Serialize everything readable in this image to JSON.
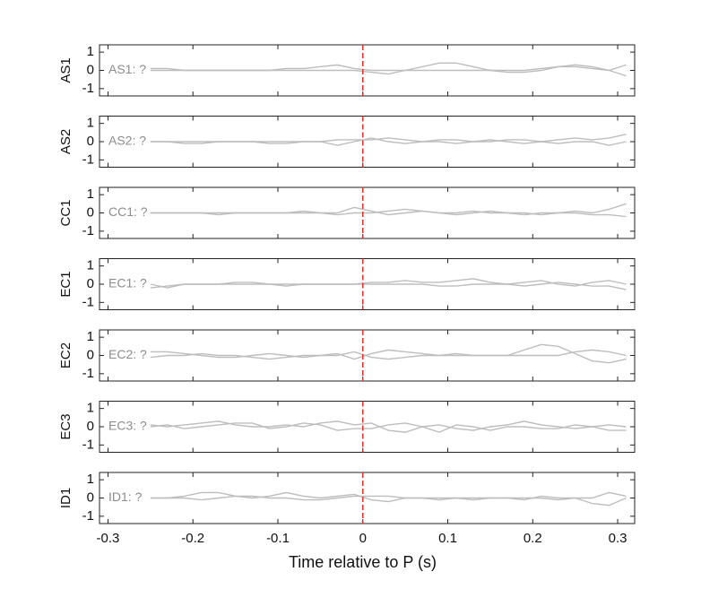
{
  "chart_data": [
    {
      "type": "line",
      "ylabel": "AS1",
      "annotation": "AS1: ?",
      "x": [
        -0.25,
        -0.23,
        -0.21,
        -0.19,
        -0.17,
        -0.15,
        -0.13,
        -0.11,
        -0.09,
        -0.07,
        -0.05,
        -0.03,
        -0.01,
        0.01,
        0.03,
        0.05,
        0.07,
        0.09,
        0.11,
        0.13,
        0.15,
        0.17,
        0.19,
        0.21,
        0.23,
        0.25,
        0.27,
        0.29,
        0.31
      ],
      "series": [
        {
          "color": "#bdbdbd",
          "values": [
            0,
            0,
            0,
            0,
            0,
            0,
            0,
            0,
            0,
            0,
            0,
            0,
            0,
            -0.1,
            -0.2,
            0,
            0.2,
            0.4,
            0.4,
            0.2,
            0,
            -0.1,
            -0.1,
            0,
            0.2,
            0.3,
            0.2,
            0,
            -0.3
          ]
        },
        {
          "color": "#bdbdbd",
          "values": [
            0.1,
            0.1,
            0,
            0,
            0,
            0,
            0,
            0,
            0.1,
            0.1,
            0.2,
            0.3,
            0.1,
            0,
            0,
            0,
            0,
            0,
            0,
            0,
            0,
            0,
            0,
            0.1,
            0.2,
            0.2,
            0.1,
            0,
            0.3
          ]
        }
      ],
      "xlim": [
        -0.31,
        0.32
      ],
      "ylim": [
        -1.4,
        1.4
      ],
      "yticks": [
        -1,
        0,
        1
      ],
      "vline": 0,
      "vline_color": "#e8312b"
    },
    {
      "type": "line",
      "ylabel": "AS2",
      "annotation": "AS2: ?",
      "x": [
        -0.25,
        -0.23,
        -0.21,
        -0.19,
        -0.17,
        -0.15,
        -0.13,
        -0.11,
        -0.09,
        -0.07,
        -0.05,
        -0.03,
        -0.01,
        0.01,
        0.03,
        0.05,
        0.07,
        0.09,
        0.11,
        0.13,
        0.15,
        0.17,
        0.19,
        0.21,
        0.23,
        0.25,
        0.27,
        0.29,
        0.31
      ],
      "series": [
        {
          "color": "#bdbdbd",
          "values": [
            0,
            0,
            0,
            0,
            0,
            0,
            0,
            0,
            0,
            0,
            0,
            0.1,
            0.1,
            0.1,
            0.2,
            0.1,
            0,
            0.1,
            0.1,
            0,
            0,
            0.1,
            0.1,
            0,
            0.1,
            0.2,
            0.1,
            0.2,
            0.4
          ]
        },
        {
          "color": "#bdbdbd",
          "values": [
            0,
            0,
            -0.1,
            -0.1,
            0,
            0,
            0,
            -0.1,
            -0.1,
            0,
            0,
            -0.2,
            0,
            0.2,
            0,
            -0.1,
            0,
            0,
            -0.1,
            0,
            0.1,
            0,
            -0.1,
            0,
            -0.1,
            0,
            0,
            -0.2,
            0
          ]
        }
      ],
      "xlim": [
        -0.31,
        0.32
      ],
      "ylim": [
        -1.4,
        1.4
      ],
      "yticks": [
        -1,
        0,
        1
      ],
      "vline": 0,
      "vline_color": "#e8312b"
    },
    {
      "type": "line",
      "ylabel": "CC1",
      "annotation": "CC1: ?",
      "x": [
        -0.25,
        -0.23,
        -0.21,
        -0.19,
        -0.17,
        -0.15,
        -0.13,
        -0.11,
        -0.09,
        -0.07,
        -0.05,
        -0.03,
        -0.01,
        0.01,
        0.03,
        0.05,
        0.07,
        0.09,
        0.11,
        0.13,
        0.15,
        0.17,
        0.19,
        0.21,
        0.23,
        0.25,
        0.27,
        0.29,
        0.31
      ],
      "series": [
        {
          "color": "#bdbdbd",
          "values": [
            0,
            0,
            0,
            0,
            0,
            0,
            0,
            0,
            0,
            0,
            0,
            0,
            0.3,
            0.1,
            -0.1,
            0,
            0.1,
            0,
            -0.1,
            0,
            0.1,
            0,
            -0.1,
            0,
            0,
            0.1,
            0,
            0.2,
            0.5
          ]
        },
        {
          "color": "#bdbdbd",
          "values": [
            0,
            0,
            0,
            0,
            -0.1,
            0,
            0,
            0,
            0,
            0.1,
            0,
            -0.1,
            0,
            0,
            0.1,
            0.2,
            0.1,
            0,
            0,
            0.1,
            0,
            0,
            0,
            -0.1,
            0,
            0,
            -0.1,
            -0.1,
            -0.2
          ]
        }
      ],
      "xlim": [
        -0.31,
        0.32
      ],
      "ylim": [
        -1.4,
        1.4
      ],
      "yticks": [
        -1,
        0,
        1
      ],
      "vline": 0,
      "vline_color": "#e8312b"
    },
    {
      "type": "line",
      "ylabel": "EC1",
      "annotation": "EC1: ?",
      "x": [
        -0.25,
        -0.23,
        -0.21,
        -0.19,
        -0.17,
        -0.15,
        -0.13,
        -0.11,
        -0.09,
        -0.07,
        -0.05,
        -0.03,
        -0.01,
        0.01,
        0.03,
        0.05,
        0.07,
        0.09,
        0.11,
        0.13,
        0.15,
        0.17,
        0.19,
        0.21,
        0.23,
        0.25,
        0.27,
        0.29,
        0.31
      ],
      "series": [
        {
          "color": "#bdbdbd",
          "values": [
            0,
            -0.2,
            0,
            0,
            0,
            0.1,
            0.1,
            0,
            0,
            0,
            0,
            0,
            0,
            0.1,
            0.1,
            0.2,
            0.1,
            0.1,
            0.2,
            0.3,
            0.1,
            0,
            0.1,
            0.2,
            0,
            -0.1,
            0.1,
            0.2,
            0
          ]
        },
        {
          "color": "#bdbdbd",
          "values": [
            -0.2,
            -0.1,
            0,
            0,
            0,
            0,
            0,
            0,
            -0.1,
            0,
            0,
            0,
            0,
            0,
            0,
            0,
            0,
            -0.1,
            -0.1,
            0,
            0,
            0,
            -0.1,
            0,
            0.1,
            0,
            -0.1,
            -0.1,
            -0.3
          ]
        }
      ],
      "xlim": [
        -0.31,
        0.32
      ],
      "ylim": [
        -1.4,
        1.4
      ],
      "yticks": [
        -1,
        0,
        1
      ],
      "vline": 0,
      "vline_color": "#e8312b"
    },
    {
      "type": "line",
      "ylabel": "EC2",
      "annotation": "EC2: ?",
      "x": [
        -0.25,
        -0.23,
        -0.21,
        -0.19,
        -0.17,
        -0.15,
        -0.13,
        -0.11,
        -0.09,
        -0.07,
        -0.05,
        -0.03,
        -0.01,
        0.01,
        0.03,
        0.05,
        0.07,
        0.09,
        0.11,
        0.13,
        0.15,
        0.17,
        0.19,
        0.21,
        0.23,
        0.25,
        0.27,
        0.29,
        0.31
      ],
      "series": [
        {
          "color": "#bdbdbd",
          "values": [
            0.2,
            0.2,
            0.1,
            0,
            -0.1,
            -0.1,
            0,
            0.1,
            0,
            -0.1,
            0,
            0.1,
            -0.2,
            0.1,
            0.3,
            0.2,
            0.1,
            0,
            0.1,
            0,
            0,
            0,
            0.3,
            0.6,
            0.5,
            0.1,
            -0.3,
            -0.4,
            -0.2
          ]
        },
        {
          "color": "#bdbdbd",
          "values": [
            -0.1,
            0,
            0,
            0.1,
            0,
            0,
            -0.1,
            -0.2,
            -0.1,
            0,
            0,
            0,
            0.2,
            -0.1,
            -0.2,
            -0.1,
            0,
            0,
            0,
            0,
            0,
            0,
            0,
            0,
            0,
            0.2,
            0.3,
            0.2,
            0
          ]
        }
      ],
      "xlim": [
        -0.31,
        0.32
      ],
      "ylim": [
        -1.4,
        1.4
      ],
      "yticks": [
        -1,
        0,
        1
      ],
      "vline": 0,
      "vline_color": "#e8312b"
    },
    {
      "type": "line",
      "ylabel": "EC3",
      "annotation": "EC3: ?",
      "x": [
        -0.25,
        -0.23,
        -0.21,
        -0.19,
        -0.17,
        -0.15,
        -0.13,
        -0.11,
        -0.09,
        -0.07,
        -0.05,
        -0.03,
        -0.01,
        0.01,
        0.03,
        0.05,
        0.07,
        0.09,
        0.11,
        0.13,
        0.15,
        0.17,
        0.19,
        0.21,
        0.23,
        0.25,
        0.27,
        0.29,
        0.31
      ],
      "series": [
        {
          "color": "#bdbdbd",
          "values": [
            0.1,
            0,
            0.1,
            0.2,
            0.3,
            0.1,
            0,
            0,
            0.1,
            0,
            0.2,
            0.3,
            0.1,
            0.2,
            -0.2,
            -0.3,
            0,
            0.1,
            -0.1,
            -0.2,
            0,
            0.1,
            0.3,
            0.1,
            0,
            -0.1,
            0,
            0.1,
            0
          ]
        },
        {
          "color": "#bdbdbd",
          "values": [
            0,
            0.1,
            -0.1,
            0,
            0.1,
            0.2,
            0.2,
            -0.1,
            0,
            0.2,
            0.1,
            -0.2,
            -0.1,
            -0.1,
            0.1,
            0.2,
            0,
            -0.3,
            0.1,
            0,
            -0.2,
            0,
            0,
            -0.1,
            -0.1,
            0.1,
            0,
            -0.2,
            -0.2
          ]
        }
      ],
      "xlim": [
        -0.31,
        0.32
      ],
      "ylim": [
        -1.4,
        1.4
      ],
      "yticks": [
        -1,
        0,
        1
      ],
      "vline": 0,
      "vline_color": "#e8312b"
    },
    {
      "type": "line",
      "ylabel": "ID1",
      "annotation": "ID1: ?",
      "x": [
        -0.25,
        -0.23,
        -0.21,
        -0.19,
        -0.17,
        -0.15,
        -0.13,
        -0.11,
        -0.09,
        -0.07,
        -0.05,
        -0.03,
        -0.01,
        0.01,
        0.03,
        0.05,
        0.07,
        0.09,
        0.11,
        0.13,
        0.15,
        0.17,
        0.19,
        0.21,
        0.23,
        0.25,
        0.27,
        0.29,
        0.31
      ],
      "series": [
        {
          "color": "#bdbdbd",
          "values": [
            0,
            0,
            0.1,
            0.3,
            0.3,
            0.1,
            0,
            0.1,
            0.3,
            0.1,
            0,
            0.1,
            0.2,
            -0.1,
            -0.2,
            0,
            0,
            -0.1,
            0,
            0,
            0,
            0,
            -0.1,
            0.1,
            0,
            0,
            0,
            0.3,
            0.1
          ]
        },
        {
          "color": "#bdbdbd",
          "values": [
            0,
            0,
            0,
            -0.1,
            0,
            0.1,
            0.1,
            0,
            0,
            -0.1,
            -0.1,
            0,
            0.1,
            0.1,
            0.1,
            0,
            0,
            0,
            0,
            -0.1,
            0,
            0,
            0,
            0,
            -0.1,
            0,
            -0.3,
            -0.4,
            0
          ]
        }
      ],
      "xlim": [
        -0.31,
        0.32
      ],
      "ylim": [
        -1.4,
        1.4
      ],
      "yticks": [
        -1,
        0,
        1
      ],
      "vline": 0,
      "vline_color": "#e8312b",
      "xticks": [
        -0.3,
        -0.2,
        -0.1,
        0,
        0.1,
        0.2,
        0.3
      ],
      "xlabel": "Time relative to P (s)"
    }
  ]
}
